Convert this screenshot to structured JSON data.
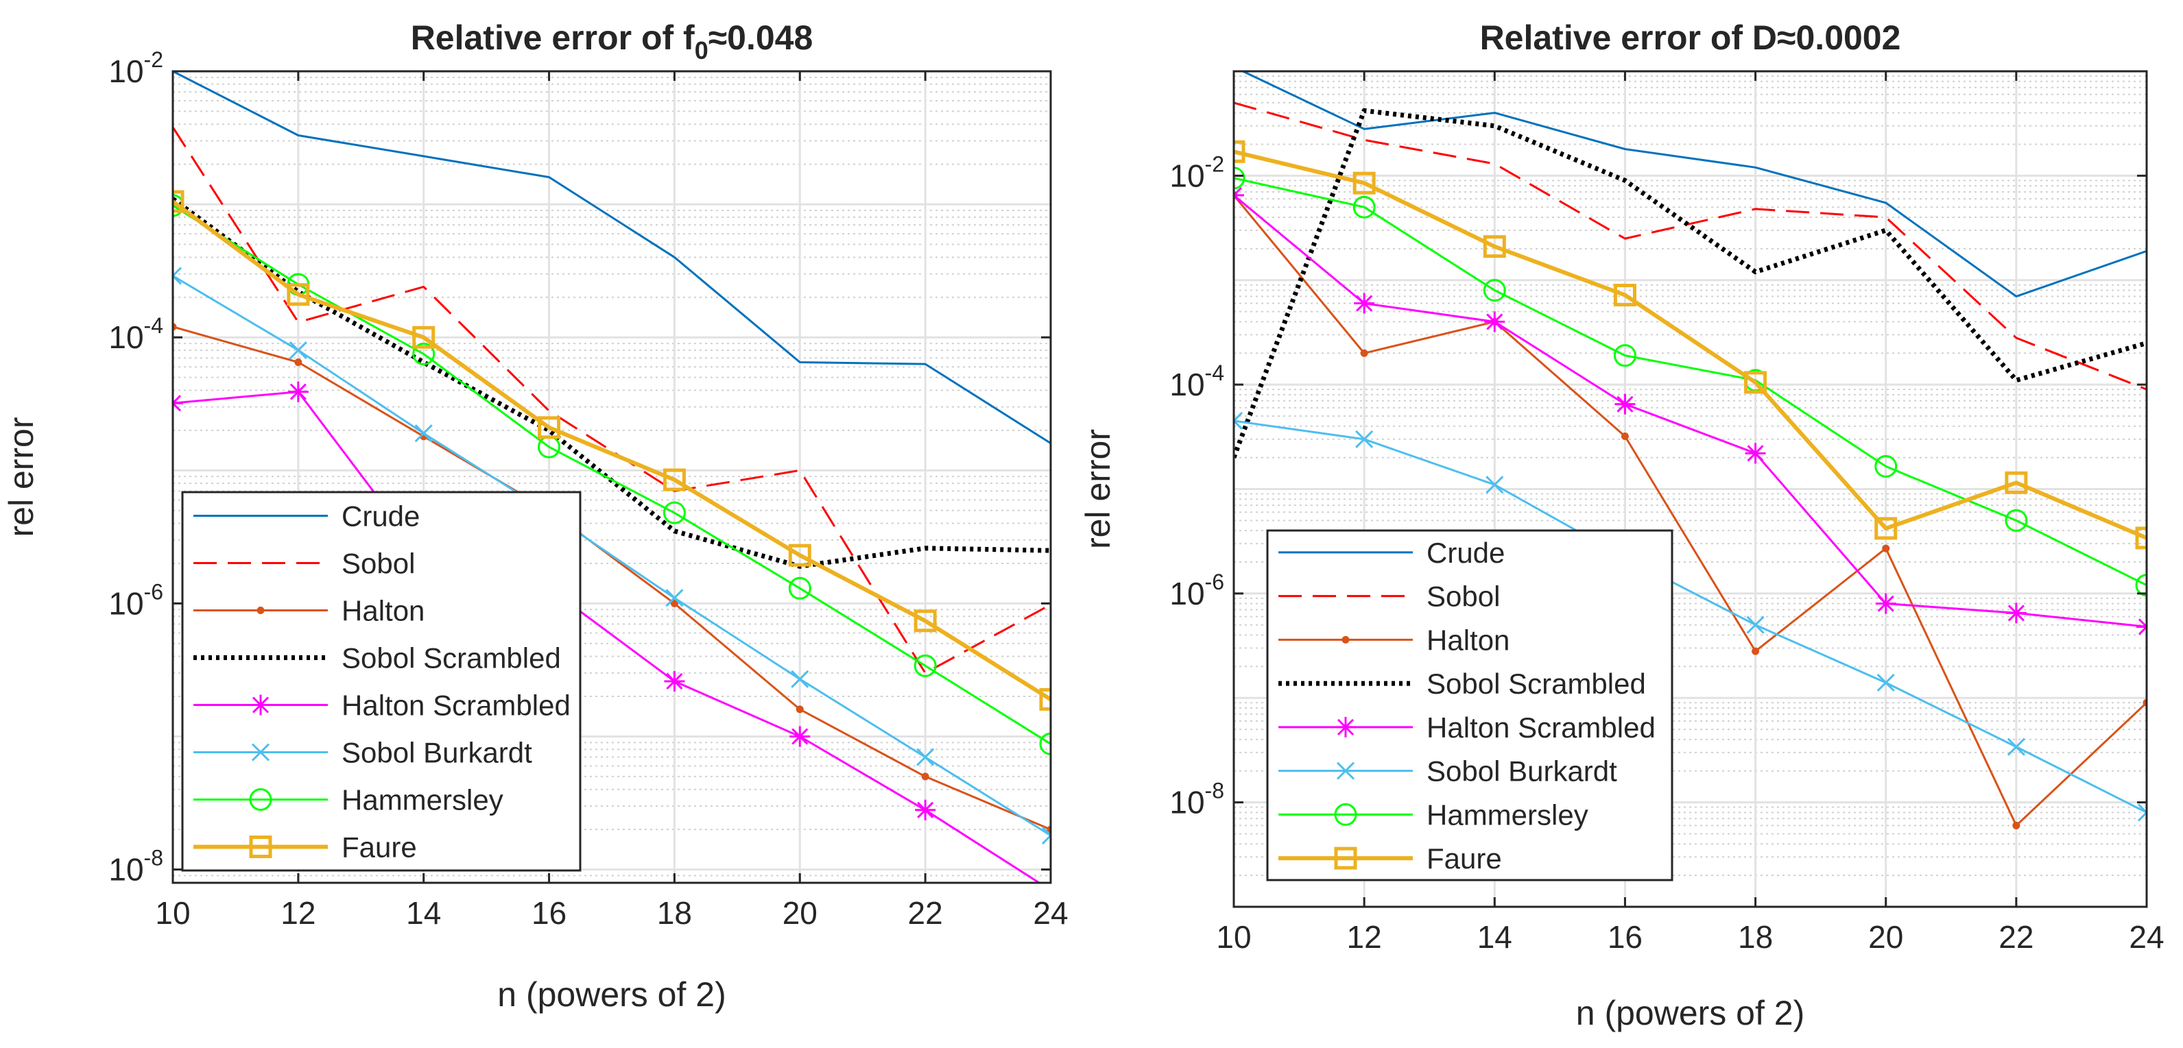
{
  "chart_data": [
    {
      "type": "line",
      "scale_y": "log",
      "title_main": "Relative error of f",
      "title_sub": "0",
      "title_tail": "≈0.048",
      "xlabel": "n (powers of 2)",
      "ylabel": "rel error",
      "x": [
        10,
        12,
        14,
        16,
        18,
        20,
        22,
        24
      ],
      "xlim": [
        10,
        24
      ],
      "x_ticks": [
        10,
        12,
        14,
        16,
        18,
        20,
        22,
        24
      ],
      "ylim_exp": [
        -8.1,
        -2
      ],
      "y_ticks_exp": [
        -8,
        -6,
        -4,
        -2
      ],
      "grid": true,
      "legend_position": "bottom-left",
      "series": [
        {
          "name": "Crude",
          "color": "#0072BD",
          "style": "solid",
          "marker": "none",
          "values": [
            0.01,
            0.0033,
            0.0023,
            0.0016,
            0.0004,
            6.5e-05,
            6.3e-05,
            1.6e-05
          ]
        },
        {
          "name": "Sobol",
          "color": "#FF0000",
          "style": "dashed",
          "marker": "none",
          "values": [
            0.0038,
            0.00013,
            0.00024,
            2.8e-05,
            7e-06,
            1e-05,
            3e-07,
            9.8e-07
          ]
        },
        {
          "name": "Halton",
          "color": "#D95319",
          "style": "solid",
          "marker": "dot",
          "values": [
            0.00012,
            6.5e-05,
            1.8e-05,
            5e-06,
            1e-06,
            1.6e-07,
            5e-08,
            2e-08
          ]
        },
        {
          "name": "Sobol Scrambled",
          "color": "#000000",
          "style": "dotted",
          "marker": "none",
          "values": [
            0.0011,
            0.00022,
            6.5e-05,
            2e-05,
            3.5e-06,
            1.9e-06,
            2.6e-06,
            2.5e-06
          ]
        },
        {
          "name": "Halton Scrambled",
          "color": "#FF00FF",
          "style": "solid",
          "marker": "asterisk",
          "values": [
            3.2e-05,
            3.9e-05,
            2.2e-06,
            1.3e-06,
            2.6e-07,
            1e-07,
            2.8e-08,
            7e-09
          ]
        },
        {
          "name": "Sobol Burkardt",
          "color": "#4DBEEE",
          "style": "solid",
          "marker": "x",
          "values": [
            0.00029,
            8e-05,
            1.9e-05,
            4.8e-06,
            1.1e-06,
            2.7e-07,
            7e-08,
            1.8e-08
          ]
        },
        {
          "name": "Hammersley",
          "color": "#00FF00",
          "style": "solid",
          "marker": "circle",
          "values": [
            0.00098,
            0.00025,
            7.5e-05,
            1.5e-05,
            4.8e-06,
            1.3e-06,
            3.4e-07,
            8.8e-08
          ]
        },
        {
          "name": "Faure",
          "color": "#EDB120",
          "style": "thick",
          "marker": "square",
          "values": [
            0.00105,
            0.00021,
            0.0001,
            2.1e-05,
            8.5e-06,
            2.3e-06,
            7.4e-07,
            1.9e-07
          ]
        }
      ]
    },
    {
      "type": "line",
      "scale_y": "log",
      "title_main": "Relative error of D",
      "title_sub": "",
      "title_tail": "≈0.0002",
      "xlabel": "n (powers of 2)",
      "ylabel": "rel error",
      "x": [
        10,
        12,
        14,
        16,
        18,
        20,
        22,
        24
      ],
      "xlim": [
        10,
        24
      ],
      "x_ticks": [
        10,
        12,
        14,
        16,
        18,
        20,
        22,
        24
      ],
      "ylim_exp": [
        -9,
        -1
      ],
      "y_ticks_exp": [
        -8,
        -6,
        -4,
        -2
      ],
      "grid": true,
      "legend_position": "bottom-left",
      "series": [
        {
          "name": "Crude",
          "color": "#0072BD",
          "style": "solid",
          "marker": "none",
          "values": [
            0.11,
            0.028,
            0.04,
            0.018,
            0.012,
            0.0055,
            0.0007,
            0.0019
          ]
        },
        {
          "name": "Sobol",
          "color": "#FF0000",
          "style": "dashed",
          "marker": "none",
          "values": [
            0.05,
            0.022,
            0.013,
            0.0025,
            0.0048,
            0.004,
            0.00028,
            9e-05
          ]
        },
        {
          "name": "Halton",
          "color": "#D95319",
          "style": "solid",
          "marker": "dot",
          "values": [
            0.0065,
            0.0002,
            0.0004,
            3.2e-05,
            2.8e-07,
            2.7e-06,
            6e-09,
            9e-08
          ]
        },
        {
          "name": "Sobol Scrambled",
          "color": "#000000",
          "style": "dotted",
          "marker": "none",
          "values": [
            2e-05,
            0.042,
            0.03,
            0.009,
            0.0012,
            0.003,
            0.00011,
            0.00025
          ]
        },
        {
          "name": "Halton Scrambled",
          "color": "#FF00FF",
          "style": "solid",
          "marker": "asterisk",
          "values": [
            0.0065,
            0.0006,
            0.0004,
            6.5e-05,
            2.2e-05,
            8e-07,
            6.5e-07,
            4.8e-07
          ]
        },
        {
          "name": "Sobol Burkardt",
          "color": "#4DBEEE",
          "style": "solid",
          "marker": "x",
          "values": [
            4.5e-05,
            3e-05,
            1.1e-05,
            2.2e-06,
            5e-07,
            1.4e-07,
            3.4e-08,
            8e-09
          ]
        },
        {
          "name": "Hammersley",
          "color": "#00FF00",
          "style": "solid",
          "marker": "circle",
          "values": [
            0.0095,
            0.005,
            0.0008,
            0.00019,
            0.00011,
            1.65e-05,
            5e-06,
            1.2e-06
          ]
        },
        {
          "name": "Faure",
          "color": "#EDB120",
          "style": "thick",
          "marker": "square",
          "values": [
            0.017,
            0.0085,
            0.0021,
            0.00072,
            0.000105,
            4.2e-06,
            1.15e-05,
            3.4e-06
          ]
        }
      ]
    }
  ]
}
